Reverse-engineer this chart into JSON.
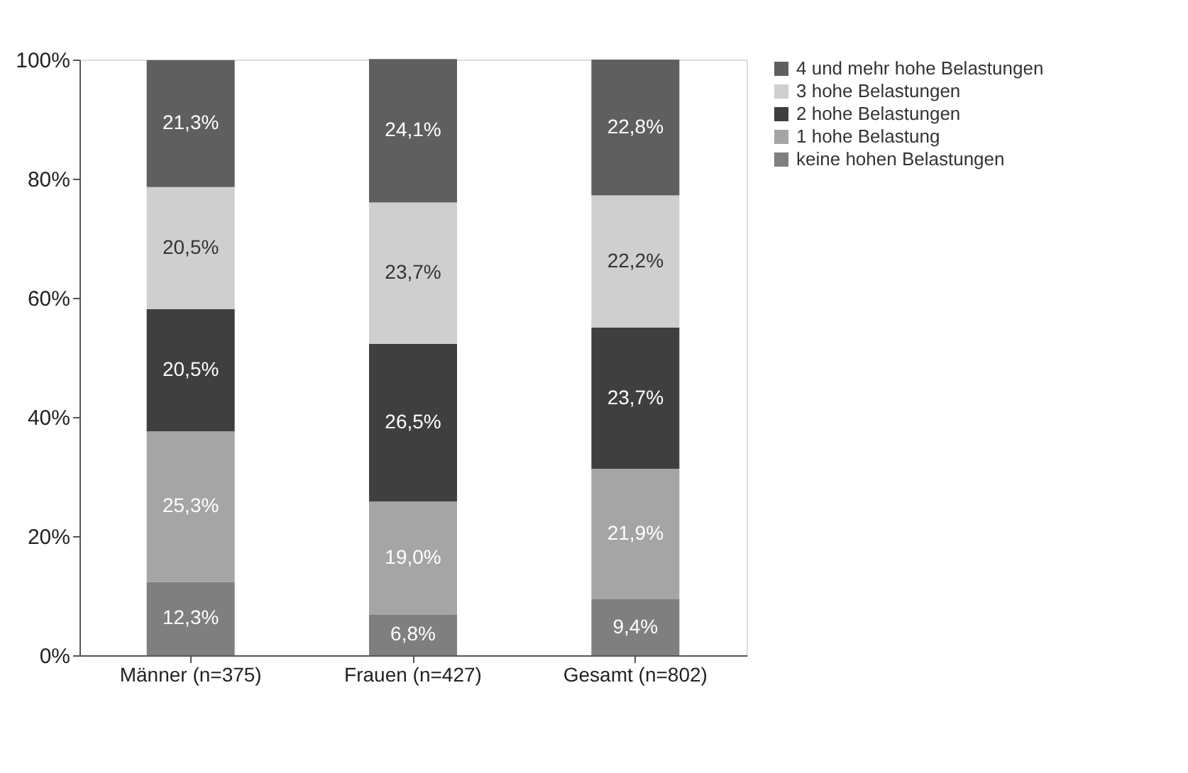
{
  "chart_data": {
    "type": "bar",
    "stacked": true,
    "categories": [
      "Männer (n=375)",
      "Frauen (n=427)",
      "Gesamt (n=802)"
    ],
    "series": [
      {
        "name": "keine hohen Belastungen",
        "color": "#7f7f7f",
        "values": [
          12.3,
          6.8,
          9.4
        ],
        "value_labels": [
          "12,3%",
          "6,8%",
          "9,4%"
        ]
      },
      {
        "name": "1 hohe Belastung",
        "color": "#a5a5a5",
        "values": [
          25.3,
          19.0,
          21.9
        ],
        "value_labels": [
          "25,3%",
          "19,0%",
          "21,9%"
        ]
      },
      {
        "name": "2 hohe Belastungen",
        "color": "#3f3f3f",
        "values": [
          20.5,
          26.5,
          23.7
        ],
        "value_labels": [
          "20,5%",
          "26,5%",
          "23,7%"
        ]
      },
      {
        "name": "3 hohe Belastungen",
        "color": "#cfcfcf",
        "values": [
          20.5,
          23.7,
          22.2
        ],
        "value_labels": [
          "20,5%",
          "23,7%",
          "22,2%"
        ]
      },
      {
        "name": "4 und mehr hohe Belastungen",
        "color": "#5f5f5f",
        "values": [
          21.3,
          24.1,
          22.8
        ],
        "value_labels": [
          "21,3%",
          "24,1%",
          "22,8%"
        ]
      }
    ],
    "ylim": [
      0,
      100
    ],
    "yticks": [
      {
        "value": 0,
        "label": "0%"
      },
      {
        "value": 20,
        "label": "20%"
      },
      {
        "value": 40,
        "label": "40%"
      },
      {
        "value": 60,
        "label": "60%"
      },
      {
        "value": 80,
        "label": "80%"
      },
      {
        "value": 100,
        "label": "100%"
      }
    ],
    "grid": false,
    "legend": "right"
  }
}
